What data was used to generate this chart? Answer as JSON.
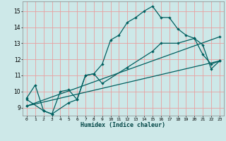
{
  "title": "",
  "xlabel": "Humidex (Indice chaleur)",
  "xlim": [
    -0.5,
    23.5
  ],
  "ylim": [
    8.5,
    15.6
  ],
  "xticks": [
    0,
    1,
    2,
    3,
    4,
    5,
    6,
    7,
    8,
    9,
    10,
    11,
    12,
    13,
    14,
    15,
    16,
    17,
    18,
    19,
    20,
    21,
    22,
    23
  ],
  "yticks": [
    9,
    10,
    11,
    12,
    13,
    14,
    15
  ],
  "bg_color": "#cde8e8",
  "grid_color": "#e8a0a0",
  "line_color": "#006060",
  "line1_x": [
    0,
    1,
    2,
    3,
    4,
    5,
    6,
    7,
    8,
    9,
    10,
    11,
    12,
    13,
    14,
    15,
    16,
    17,
    18,
    19,
    20,
    21,
    22,
    23
  ],
  "line1_y": [
    9.6,
    10.4,
    8.8,
    8.6,
    10.0,
    10.1,
    9.5,
    11.0,
    11.1,
    11.7,
    13.2,
    13.5,
    14.3,
    14.6,
    15.0,
    15.3,
    14.6,
    14.6,
    13.9,
    13.5,
    13.3,
    12.9,
    11.4,
    11.9
  ],
  "line2_x": [
    0,
    2,
    3,
    5,
    6,
    7,
    8,
    9,
    12,
    15,
    16,
    18,
    20,
    21,
    22,
    23
  ],
  "line2_y": [
    9.5,
    8.8,
    8.6,
    9.3,
    9.5,
    11.0,
    11.1,
    10.5,
    11.5,
    12.5,
    13.0,
    13.0,
    13.3,
    12.3,
    11.7,
    11.9
  ],
  "line3_x": [
    0,
    23
  ],
  "line3_y": [
    9.1,
    11.9
  ],
  "line4_x": [
    0,
    23
  ],
  "line4_y": [
    9.1,
    13.4
  ]
}
